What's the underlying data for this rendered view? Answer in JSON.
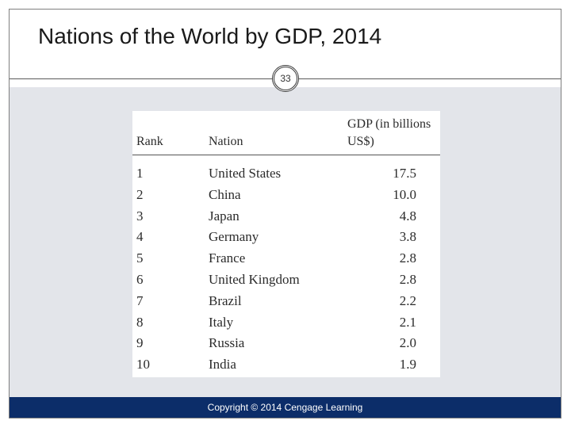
{
  "slide": {
    "title": "Nations of the World by GDP, 2014",
    "page_number": "33",
    "footer": "Copyright © 2014 Cengage Learning"
  },
  "table": {
    "headers": {
      "rank": "Rank",
      "nation": "Nation",
      "gdp_line1": "GDP (in billions",
      "gdp_line2": "US$)"
    },
    "rows": [
      {
        "rank": "1",
        "nation": "United States",
        "gdp": "17.5"
      },
      {
        "rank": "2",
        "nation": "China",
        "gdp": "10.0"
      },
      {
        "rank": "3",
        "nation": "Japan",
        "gdp": "4.8"
      },
      {
        "rank": "4",
        "nation": "Germany",
        "gdp": "3.8"
      },
      {
        "rank": "5",
        "nation": "France",
        "gdp": "2.8"
      },
      {
        "rank": "6",
        "nation": "United Kingdom",
        "gdp": "2.8"
      },
      {
        "rank": "7",
        "nation": "Brazil",
        "gdp": "2.2"
      },
      {
        "rank": "8",
        "nation": "Italy",
        "gdp": "2.1"
      },
      {
        "rank": "9",
        "nation": "Russia",
        "gdp": "2.0"
      },
      {
        "rank": "10",
        "nation": "India",
        "gdp": "1.9"
      }
    ]
  },
  "colors": {
    "footer_bar": "#0c2d69",
    "content_background": "#e3e5ea"
  }
}
